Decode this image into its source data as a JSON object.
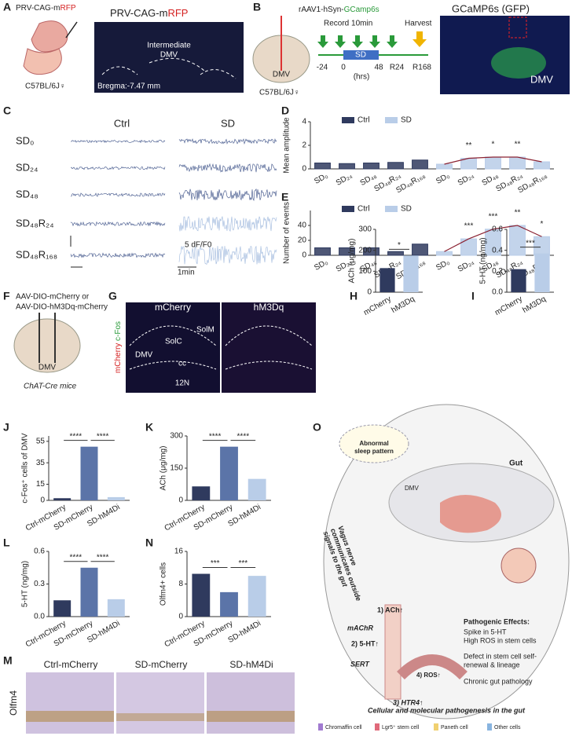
{
  "panels": {
    "A": {
      "letter": "A",
      "vector_parts": [
        "PRV-CAG-m",
        "RFP"
      ],
      "mouse": "C57BL/6J♀",
      "image_title_parts": [
        "PRV-CAG-m",
        "RFP"
      ],
      "region": [
        "Intermediate",
        "DMV"
      ],
      "bregma": "Bregma:-7.47 mm"
    },
    "B": {
      "letter": "B",
      "vector_parts": [
        "rAAV1-hSyn-",
        "GCamp6s"
      ],
      "brain_label": "DMV",
      "mouse": "C57BL/6J♀",
      "record": "Record 10min",
      "harvest": "Harvest",
      "sd": "SD",
      "times": [
        "-24",
        "0",
        "48",
        "R24",
        "R168"
      ],
      "unit": "(hrs)",
      "image_title": "GCaMP6s (GFP)",
      "image_label": "DMV"
    },
    "C": {
      "letter": "C",
      "columns": [
        "Ctrl",
        "SD"
      ],
      "rows": [
        "SD₀",
        "SD₂₄",
        "SD₄₈",
        "SD₄₈R₂₄",
        "SD₄₈R₁₆₈"
      ],
      "scale_y": "5 dF/F0",
      "scale_x": "1min"
    },
    "D": {
      "letter": "D"
    },
    "E": {
      "letter": "E"
    },
    "F": {
      "letter": "F",
      "vectors": [
        "AAV-DIO-mCherry or",
        "AAV-DIO-hM3Dq-mCherry"
      ],
      "brain_label": "DMV",
      "mouse": "ChAT-Cre mice"
    },
    "G": {
      "letter": "G",
      "columns": [
        "mCherry",
        "hM3Dq"
      ],
      "regions": [
        "SolM",
        "SolC",
        "DMV",
        "cc",
        "12N"
      ],
      "stain_parts": [
        "mCherry",
        "c-Fos"
      ]
    },
    "H": {
      "letter": "H"
    },
    "I": {
      "letter": "I"
    },
    "J": {
      "letter": "J"
    },
    "K": {
      "letter": "K"
    },
    "L": {
      "letter": "L"
    },
    "M": {
      "letter": "M",
      "columns": [
        "Ctrl-mCherry",
        "SD-mCherry",
        "SD-hM4Di"
      ],
      "stain": "Olfm4"
    },
    "N": {
      "letter": "N"
    },
    "O": {
      "letter": "O",
      "sleep": [
        "Abnormal",
        "sleep pattern"
      ],
      "gut": "Gut",
      "dmv": "DMV",
      "vagus": [
        "Vagus nerve",
        "communicates outside",
        "signals to the gut"
      ],
      "steps": [
        "1) ACh↑",
        "mAChR",
        "2) 5-HT↑",
        "SERT",
        "4) ROS↑",
        "3) HTR4↑"
      ],
      "effects_title": "Pathogenic Effects:",
      "effects": [
        "Spike in 5-HT",
        "High ROS in stem cells",
        "Defect in stem cell self-",
        "renewal & lineage",
        "Chronic gut pathology"
      ],
      "caption": "Cellular and molecular pathogenesis in the gut",
      "legend": [
        "Chromaffin cell",
        "Lgr5⁺ stem cell",
        "Paneth cell",
        "Other cells"
      ]
    }
  },
  "chart_data": [
    {
      "type": "grouped",
      "ylabel": "Mean amplitude",
      "categories": [
        "SD₀",
        "SD₂₄",
        "SD₄₈",
        "SD₄₈R₂₄",
        "SD₄₈R₁₆₈"
      ],
      "series": [
        {
          "name": "Ctrl",
          "color": "#2f3a5e",
          "values": [
            0.5,
            0.45,
            0.5,
            0.55,
            0.75
          ]
        },
        {
          "name": "SD",
          "color": "#b9cde8",
          "values": [
            0.4,
            0.9,
            1.0,
            1.0,
            0.6
          ]
        }
      ],
      "annotations": [
        null,
        "**",
        "*",
        "**",
        null
      ],
      "line_color": "#8b2232",
      "ylim": [
        0,
        4
      ],
      "yticks": [
        0,
        2,
        4
      ]
    },
    {
      "type": "grouped",
      "ylabel": "Number of events",
      "categories": [
        "SD₀",
        "SD₂₄",
        "SD₄₈",
        "SD₄₈R₂₄",
        "SD₄₈R₁₆₈"
      ],
      "series": [
        {
          "name": "Ctrl",
          "color": "#2f3a5e",
          "values": [
            10,
            10,
            10,
            5,
            15
          ]
        },
        {
          "name": "SD",
          "color": "#b9cde8",
          "values": [
            5,
            22,
            35,
            40,
            25
          ]
        }
      ],
      "annotations": [
        null,
        "***",
        "***",
        "**",
        "*"
      ],
      "line_color": "#8b2232",
      "ylim": [
        0,
        60
      ],
      "yticks": [
        0,
        20,
        40
      ]
    },
    {
      "type": "bar",
      "ylabel": "ACh (μg/mg)",
      "categories": [
        "mCherry",
        "hM3Dq"
      ],
      "values": [
        115,
        175
      ],
      "colors": [
        "#2f3a5e",
        "#b9cde8"
      ],
      "annotations": [
        "*"
      ],
      "ylim": [
        0,
        300
      ],
      "yticks": [
        0,
        100,
        200,
        300
      ]
    },
    {
      "type": "bar",
      "ylabel": "5-HT (ng/mg)",
      "categories": [
        "mCherry",
        "hM3Dq"
      ],
      "values": [
        0.22,
        0.37
      ],
      "colors": [
        "#2f3a5e",
        "#b9cde8"
      ],
      "annotations": [
        "***"
      ],
      "ylim": [
        0,
        0.6
      ],
      "yticks": [
        {
          "value": 0,
          "label": "0.0"
        },
        0.2,
        0.4,
        0.6
      ]
    },
    {
      "type": "bar",
      "ylabel": "c-Fos⁺ cells of DMV",
      "categories": [
        "Ctrl-mCherry",
        "SD-mCherry",
        "SD-hM4Di"
      ],
      "values": [
        2,
        50,
        3
      ],
      "colors": [
        "#2f3a5e",
        "#5b74a8",
        "#b9cde8"
      ],
      "annotations": [
        "****",
        "****"
      ],
      "ylim": [
        0,
        60
      ],
      "yticks": [
        0,
        15,
        35,
        55
      ]
    },
    {
      "type": "bar",
      "ylabel": "ACh (μg/mg)",
      "categories": [
        "Ctrl-mCherry",
        "SD-mCherry",
        "SD-hM4Di"
      ],
      "values": [
        65,
        250,
        100
      ],
      "colors": [
        "#2f3a5e",
        "#5b74a8",
        "#b9cde8"
      ],
      "annotations": [
        "****",
        "****"
      ],
      "ylim": [
        0,
        300
      ],
      "yticks": [
        0,
        150,
        300
      ]
    },
    {
      "type": "bar",
      "ylabel": "5-HT (ng/mg)",
      "categories": [
        "Ctrl-mCherry",
        "SD-mCherry",
        "SD-hM4Di"
      ],
      "values": [
        0.15,
        0.45,
        0.16
      ],
      "colors": [
        "#2f3a5e",
        "#5b74a8",
        "#b9cde8"
      ],
      "annotations": [
        "****",
        "****"
      ],
      "ylim": [
        0,
        0.6
      ],
      "yticks": [
        {
          "value": 0,
          "label": "0.0"
        },
        0.3,
        0.6
      ]
    },
    {
      "type": "bar",
      "ylabel": "Olfm4+ cells",
      "categories": [
        "Ctrl-mCherry",
        "SD-mCherry",
        "SD-hM4Di"
      ],
      "values": [
        10.5,
        6,
        10
      ],
      "colors": [
        "#2f3a5e",
        "#5b74a8",
        "#b9cde8"
      ],
      "annotations": [
        "***",
        "***"
      ],
      "ylim": [
        0,
        16
      ],
      "yticks": [
        0,
        8,
        16
      ]
    }
  ]
}
